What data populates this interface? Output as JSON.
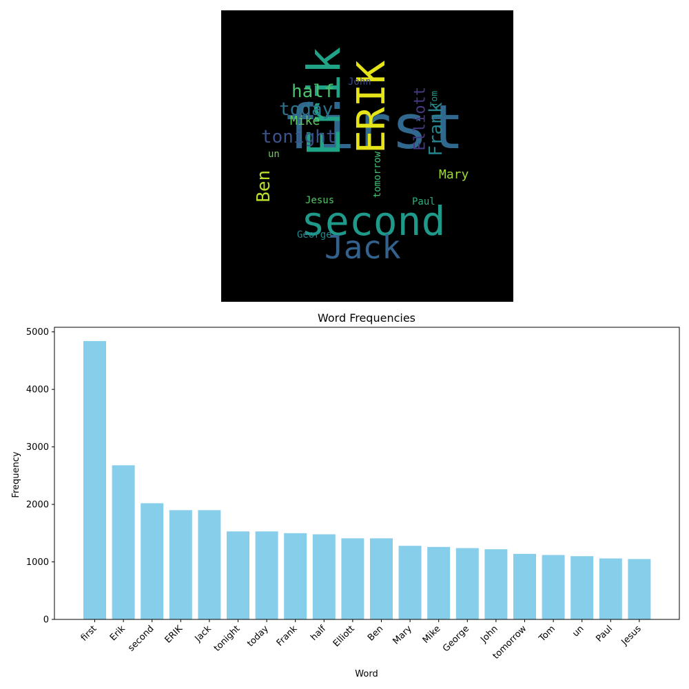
{
  "wordcloud": {
    "background": "#000000",
    "words": [
      {
        "text": "first",
        "color": "#31688e"
      },
      {
        "text": "Erik",
        "color": "#20a386"
      },
      {
        "text": "second",
        "color": "#1f9a8a"
      },
      {
        "text": "ERIK",
        "color": "#e5e419"
      },
      {
        "text": "Jack",
        "color": "#33638d"
      },
      {
        "text": "tonight",
        "color": "#3b528b"
      },
      {
        "text": "today",
        "color": "#2c728e"
      },
      {
        "text": "Frank",
        "color": "#25848e"
      },
      {
        "text": "half",
        "color": "#4ac16d"
      },
      {
        "text": "Elliott",
        "color": "#443983"
      },
      {
        "text": "Ben",
        "color": "#b8de29"
      },
      {
        "text": "Mary",
        "color": "#a0da39"
      },
      {
        "text": "Mike",
        "color": "#5ec962"
      },
      {
        "text": "George",
        "color": "#24868e"
      },
      {
        "text": "John",
        "color": "#3e4989"
      },
      {
        "text": "tomorrow",
        "color": "#40bd72"
      },
      {
        "text": "Tom",
        "color": "#1f958b"
      },
      {
        "text": "un",
        "color": "#6ece58"
      },
      {
        "text": "Paul",
        "color": "#2db27d"
      },
      {
        "text": "Jesus",
        "color": "#52c569"
      }
    ]
  },
  "chart_data": {
    "type": "bar",
    "title": "Word Frequencies",
    "xlabel": "Word",
    "ylabel": "Frequency",
    "categories": [
      "first",
      "Erik",
      "second",
      "ERIK",
      "Jack",
      "tonight",
      "today",
      "Frank",
      "half",
      "Elliott",
      "Ben",
      "Mary",
      "Mike",
      "George",
      "John",
      "tomorrow",
      "Tom",
      "un",
      "Paul",
      "Jesus"
    ],
    "values": [
      4840,
      2680,
      2020,
      1900,
      1900,
      1530,
      1530,
      1500,
      1480,
      1410,
      1410,
      1280,
      1260,
      1240,
      1220,
      1140,
      1120,
      1100,
      1060,
      1050
    ],
    "ylim": [
      0,
      5080
    ],
    "yticks": [
      0,
      1000,
      2000,
      3000,
      4000,
      5000
    ],
    "bar_color": "#87ceeb",
    "grid": false
  }
}
